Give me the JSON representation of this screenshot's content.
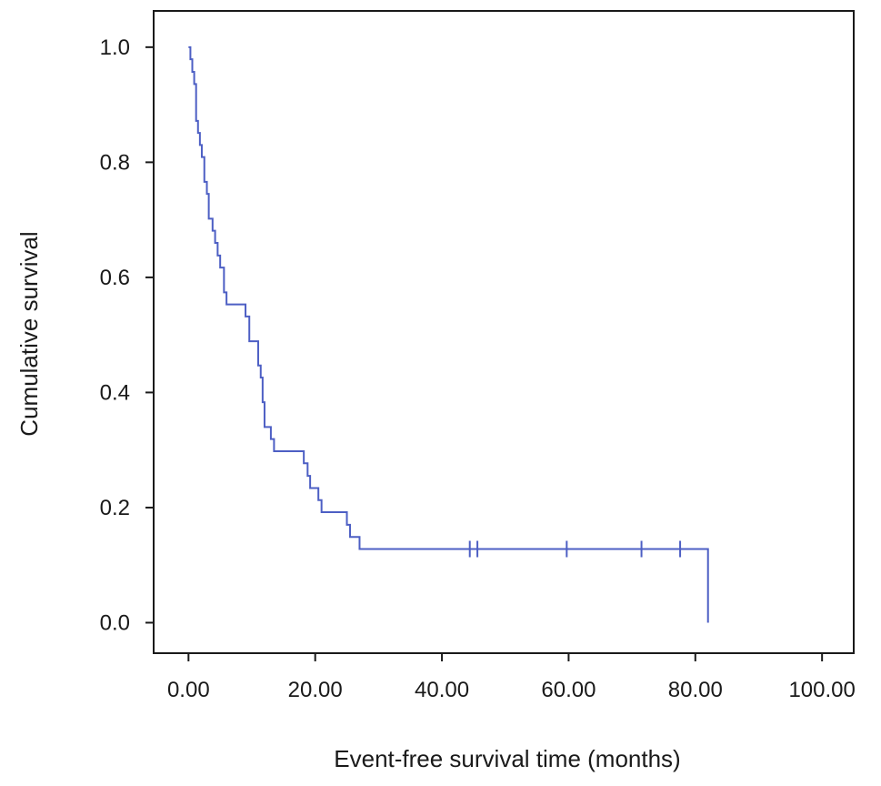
{
  "chart_data": {
    "type": "line",
    "title": "",
    "xlabel": "Event-free survival time (months)",
    "ylabel": "Cumulative survival",
    "xlim": [
      -5.5,
      105
    ],
    "ylim": [
      -0.053,
      1.063
    ],
    "x_ticks": [
      0,
      20,
      40,
      60,
      80,
      100
    ],
    "x_tick_labels": [
      "0.00",
      "20.00",
      "40.00",
      "60.00",
      "80.00",
      "100.00"
    ],
    "y_ticks": [
      0.0,
      0.2,
      0.4,
      0.6,
      0.8,
      1.0
    ],
    "y_tick_labels": [
      "0.0",
      "0.2",
      "0.4",
      "0.6",
      "0.8",
      "1.0"
    ],
    "grid": false,
    "legend": "none",
    "colors": {
      "curve": "#4d5fc4",
      "axis": "#1a1a1a"
    },
    "series": [
      {
        "style": "step",
        "points": [
          [
            0.0,
            1.0
          ],
          [
            0.3,
            0.979
          ],
          [
            0.6,
            0.957
          ],
          [
            0.9,
            0.936
          ],
          [
            1.2,
            0.872
          ],
          [
            1.5,
            0.851
          ],
          [
            1.8,
            0.83
          ],
          [
            2.1,
            0.809
          ],
          [
            2.5,
            0.766
          ],
          [
            2.9,
            0.745
          ],
          [
            3.2,
            0.702
          ],
          [
            3.8,
            0.681
          ],
          [
            4.2,
            0.66
          ],
          [
            4.6,
            0.638
          ],
          [
            5.0,
            0.617
          ],
          [
            5.6,
            0.574
          ],
          [
            6.0,
            0.553
          ],
          [
            9.0,
            0.532
          ],
          [
            9.6,
            0.489
          ],
          [
            11.0,
            0.447
          ],
          [
            11.4,
            0.426
          ],
          [
            11.7,
            0.383
          ],
          [
            12.0,
            0.34
          ],
          [
            13.0,
            0.319
          ],
          [
            13.5,
            0.298
          ],
          [
            18.2,
            0.277
          ],
          [
            18.8,
            0.255
          ],
          [
            19.2,
            0.234
          ],
          [
            20.5,
            0.213
          ],
          [
            21.0,
            0.192
          ],
          [
            25.0,
            0.17
          ],
          [
            25.5,
            0.149
          ],
          [
            27.0,
            0.128
          ],
          [
            82.0,
            0.0
          ]
        ],
        "censored": [
          44.4,
          45.6,
          59.7,
          71.5,
          77.6
        ]
      }
    ]
  }
}
